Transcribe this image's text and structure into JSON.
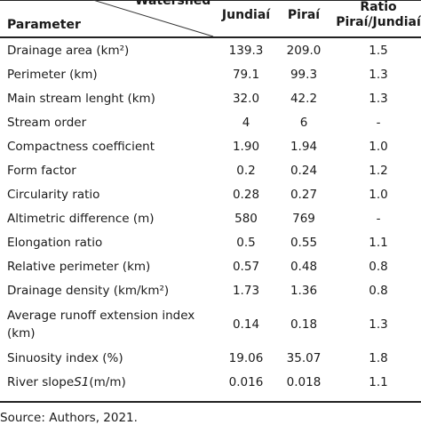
{
  "header": {
    "watershed": "Watershed",
    "parameter": "Parameter",
    "columns": {
      "jundiai": "Jundiaí",
      "pirai": "Piraí",
      "ratio_line1": "Ratio",
      "ratio_line2": "Piraí/Jundiaí"
    }
  },
  "rows": [
    {
      "parameter": "Drainage area (km²)",
      "jundiai": "139.3",
      "pirai": "209.0",
      "ratio": "1.5"
    },
    {
      "parameter": "Perimeter (km)",
      "jundiai": "79.1",
      "pirai": "99.3",
      "ratio": "1.3"
    },
    {
      "parameter": "Main stream lenght (km)",
      "jundiai": "32.0",
      "pirai": "42.2",
      "ratio": "1.3"
    },
    {
      "parameter": "Stream order",
      "jundiai": "4",
      "pirai": "6",
      "ratio": "-"
    },
    {
      "parameter": "Compactness coefficient",
      "jundiai": "1.90",
      "pirai": "1.94",
      "ratio": "1.0"
    },
    {
      "parameter": "Form factor",
      "jundiai": "0.2",
      "pirai": "0.24",
      "ratio": "1.2"
    },
    {
      "parameter": "Circularity ratio",
      "jundiai": "0.28",
      "pirai": "0.27",
      "ratio": "1.0"
    },
    {
      "parameter": "Altimetric difference (m)",
      "jundiai": "580",
      "pirai": "769",
      "ratio": "-"
    },
    {
      "parameter": "Elongation ratio",
      "jundiai": "0.5",
      "pirai": "0.55",
      "ratio": "1.1"
    },
    {
      "parameter": "Relative perimeter (km)",
      "jundiai": "0.57",
      "pirai": "0.48",
      "ratio": "0.8"
    },
    {
      "parameter": "Drainage density (km/km²)",
      "jundiai": "1.73",
      "pirai": "1.36",
      "ratio": "0.8"
    },
    {
      "parameter": "Average runoff extension index (km)",
      "jundiai": "0.14",
      "pirai": "0.18",
      "ratio": "1.3"
    },
    {
      "parameter": "Sinuosity index (%)",
      "jundiai": "19.06",
      "pirai": "35.07",
      "ratio": "1.8"
    },
    {
      "parameter": "River slope S1 (m/m)",
      "jundiai": "0.016",
      "pirai": "0.018",
      "ratio": "1.1"
    }
  ],
  "source": "Source: Authors, 2021."
}
